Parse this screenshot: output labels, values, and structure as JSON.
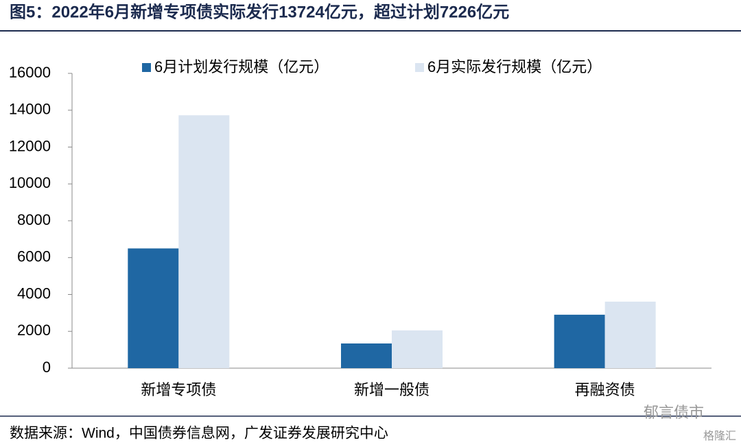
{
  "title": "图5：2022年6月新增专项债实际发行13724亿元，超过计划7226亿元",
  "source": "数据来源：Wind，中国债券信息网，广发证券发展研究中心",
  "watermarks": [
    "郁言债市",
    "格隆汇"
  ],
  "chart_data": {
    "type": "bar",
    "categories": [
      "新增专项债",
      "新增一般债",
      "再融资债"
    ],
    "series": [
      {
        "name": "6月计划发行规模（亿元）",
        "color": "#1f67a3",
        "values": [
          6498,
          1340,
          2900
        ]
      },
      {
        "name": "6月实际发行规模（亿元）",
        "color": "#dbe5f1",
        "values": [
          13724,
          2050,
          3610
        ]
      }
    ],
    "ylim": [
      0,
      16000
    ],
    "yticks": [
      0,
      2000,
      4000,
      6000,
      8000,
      10000,
      12000,
      14000,
      16000
    ],
    "grid": false,
    "legend": "top"
  }
}
